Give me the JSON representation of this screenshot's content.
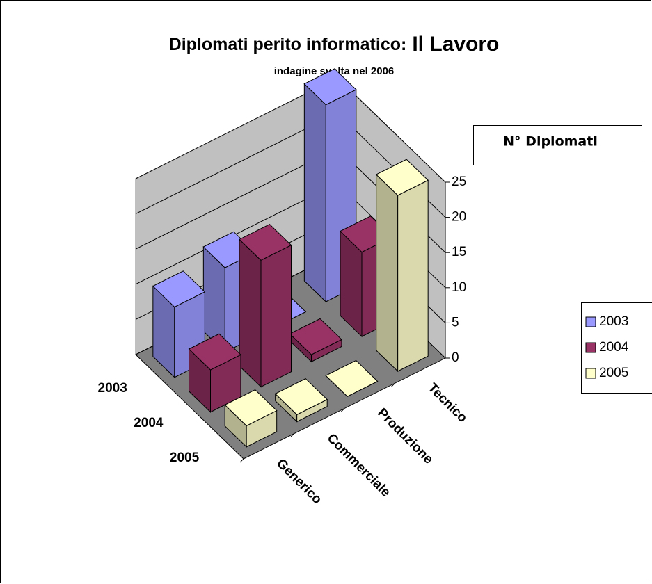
{
  "chart_data": {
    "type": "bar3d",
    "title": "Diplomati perito informatico:",
    "title_emphasis": "Il Lavoro",
    "subtitle": "indagine svolta nel 2006",
    "annotation": "N° Diplomati",
    "categories": [
      "Generico",
      "Commerciale",
      "Produzione",
      "Tecnico"
    ],
    "series": [
      {
        "name": "2003",
        "color": "#9999ff",
        "values": [
          10,
          12,
          0,
          28
        ]
      },
      {
        "name": "2004",
        "color": "#993366",
        "values": [
          6,
          18,
          1,
          12
        ]
      },
      {
        "name": "2005",
        "color": "#ffffcc",
        "values": [
          3,
          1,
          0,
          25
        ]
      }
    ],
    "ylim": [
      0,
      25
    ],
    "yticks": [
      0,
      5,
      10,
      15,
      20,
      25
    ],
    "grid": true,
    "legend": "right"
  }
}
